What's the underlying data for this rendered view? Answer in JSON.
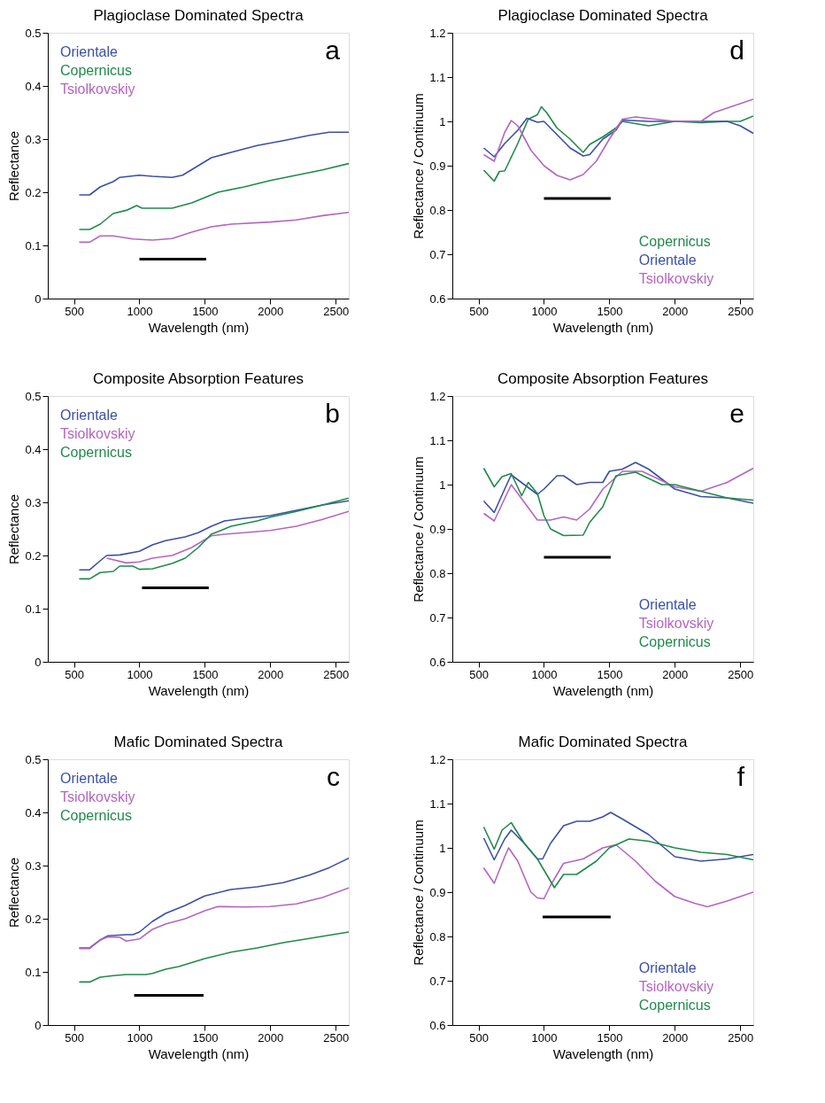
{
  "chart_data": [
    {
      "type": "line",
      "title": "Plagioclase Dominated Spectra",
      "xlabel": "Wavelength (nm)",
      "ylabel": "Reflectance",
      "xlim": [
        300,
        2600
      ],
      "xticks": [
        500,
        1000,
        1500,
        2000,
        2500
      ],
      "ylim": [
        0,
        0.5
      ],
      "yticks": [
        0,
        0.1,
        0.2,
        0.3,
        0.4,
        0.5
      ],
      "grid": false,
      "legend": "top left",
      "annotations": [
        "a"
      ],
      "series": [
        {
          "name": "Orientale",
          "color": "#3a4fa8",
          "x": [
            540,
            620,
            700,
            800,
            850,
            1000,
            1100,
            1250,
            1330,
            1450,
            1550,
            1700,
            1900,
            2100,
            2300,
            2450,
            2600
          ],
          "values": [
            0.195,
            0.195,
            0.21,
            0.22,
            0.228,
            0.232,
            0.23,
            0.228,
            0.232,
            0.25,
            0.265,
            0.275,
            0.288,
            0.297,
            0.307,
            0.313,
            0.313
          ]
        },
        {
          "name": "Copernicus",
          "color": "#1f8a4a",
          "x": [
            540,
            620,
            700,
            800,
            900,
            980,
            1020,
            1250,
            1400,
            1500,
            1600,
            1800,
            2000,
            2200,
            2400,
            2600
          ],
          "values": [
            0.13,
            0.13,
            0.14,
            0.16,
            0.166,
            0.175,
            0.17,
            0.17,
            0.18,
            0.19,
            0.2,
            0.21,
            0.222,
            0.232,
            0.242,
            0.254
          ]
        },
        {
          "name": "Tsiolkovskiy",
          "color": "#b565c0",
          "x": [
            540,
            620,
            700,
            800,
            950,
            1100,
            1250,
            1400,
            1550,
            1700,
            2000,
            2200,
            2400,
            2600
          ],
          "values": [
            0.106,
            0.106,
            0.118,
            0.118,
            0.112,
            0.11,
            0.113,
            0.125,
            0.135,
            0.14,
            0.144,
            0.148,
            0.156,
            0.162
          ]
        },
        {
          "color": "#000000",
          "x": [
            1000,
            1510
          ],
          "values": [
            0.074,
            0.074
          ]
        }
      ]
    },
    {
      "type": "line",
      "title": "Plagioclase Dominated Spectra",
      "xlabel": "Wavelength (nm)",
      "ylabel": "Reflectance / Continuum",
      "xlim": [
        300,
        2600
      ],
      "xticks": [
        500,
        1000,
        1500,
        2000,
        2500
      ],
      "ylim": [
        0.6,
        1.2
      ],
      "yticks": [
        0.6,
        0.7,
        0.8,
        0.9,
        1,
        1.1,
        1.2
      ],
      "grid": false,
      "legend": "bottom right",
      "annotations": [
        "d"
      ],
      "series": [
        {
          "name": "Copernicus",
          "color": "#1f8a4a",
          "x": [
            540,
            620,
            660,
            700,
            800,
            880,
            950,
            980,
            1020,
            1100,
            1200,
            1300,
            1350,
            1450,
            1550,
            1600,
            1800,
            2000,
            2200,
            2400,
            2500,
            2600
          ],
          "values": [
            0.89,
            0.865,
            0.887,
            0.888,
            0.95,
            1.005,
            1.015,
            1.033,
            1.02,
            0.985,
            0.96,
            0.93,
            0.948,
            0.965,
            0.985,
            1.0,
            0.99,
            1.0,
            0.997,
            1.0,
            1.0,
            1.012
          ]
        },
        {
          "name": "Orientale",
          "color": "#3a4fa8",
          "x": [
            540,
            620,
            700,
            800,
            870,
            950,
            1000,
            1100,
            1200,
            1300,
            1350,
            1450,
            1550,
            1600,
            1800,
            2000,
            2200,
            2400,
            2500,
            2600
          ],
          "values": [
            0.94,
            0.92,
            0.95,
            0.98,
            1.007,
            0.998,
            1.0,
            0.97,
            0.94,
            0.922,
            0.925,
            0.96,
            0.98,
            1.003,
            1.0,
            1.0,
            1.0,
            1.0,
            0.99,
            0.973
          ]
        },
        {
          "name": "Tsiolkovskiy",
          "color": "#b565c0",
          "x": [
            540,
            620,
            700,
            750,
            800,
            900,
            1000,
            1100,
            1200,
            1300,
            1400,
            1500,
            1600,
            1700,
            2000,
            2200,
            2300,
            2500,
            2600
          ],
          "values": [
            0.925,
            0.91,
            0.975,
            1.002,
            0.99,
            0.935,
            0.9,
            0.878,
            0.868,
            0.88,
            0.91,
            0.96,
            1.005,
            1.01,
            1.0,
            1.0,
            1.02,
            1.04,
            1.05
          ]
        },
        {
          "color": "#000000",
          "x": [
            1000,
            1510
          ],
          "values": [
            0.826,
            0.826
          ]
        }
      ]
    },
    {
      "type": "line",
      "title": "Composite Absorption Features",
      "xlabel": "Wavelength (nm)",
      "ylabel": "Reflectance",
      "xlim": [
        300,
        2600
      ],
      "xticks": [
        500,
        1000,
        1500,
        2000,
        2500
      ],
      "ylim": [
        0,
        0.5
      ],
      "yticks": [
        0,
        0.1,
        0.2,
        0.3,
        0.4,
        0.5
      ],
      "grid": false,
      "legend": "top left",
      "annotations": [
        "b"
      ],
      "series": [
        {
          "name": "Orientale",
          "color": "#3a4fa8",
          "x": [
            540,
            620,
            700,
            750,
            850,
            1000,
            1100,
            1200,
            1350,
            1450,
            1550,
            1650,
            1800,
            2000,
            2200,
            2400,
            2600
          ],
          "values": [
            0.173,
            0.173,
            0.19,
            0.2,
            0.201,
            0.208,
            0.22,
            0.228,
            0.235,
            0.243,
            0.255,
            0.265,
            0.27,
            0.275,
            0.285,
            0.295,
            0.303
          ]
        },
        {
          "name": "Tsiolkovskiy",
          "color": "#b565c0",
          "x": [
            750,
            900,
            1000,
            1100,
            1250,
            1400,
            1550,
            1650,
            1800,
            2000,
            2200,
            2400,
            2600
          ],
          "values": [
            0.195,
            0.186,
            0.188,
            0.195,
            0.2,
            0.215,
            0.237,
            0.24,
            0.243,
            0.247,
            0.255,
            0.268,
            0.283
          ]
        },
        {
          "name": "Copernicus",
          "color": "#1f8a4a",
          "x": [
            540,
            620,
            700,
            800,
            850,
            950,
            1000,
            1100,
            1250,
            1350,
            1450,
            1550,
            1700,
            1900,
            2000,
            2200,
            2400,
            2600
          ],
          "values": [
            0.156,
            0.156,
            0.168,
            0.17,
            0.18,
            0.18,
            0.174,
            0.175,
            0.185,
            0.195,
            0.215,
            0.24,
            0.255,
            0.265,
            0.272,
            0.283,
            0.295,
            0.308
          ]
        },
        {
          "color": "#000000",
          "x": [
            1020,
            1530
          ],
          "values": [
            0.139,
            0.139
          ]
        }
      ]
    },
    {
      "type": "line",
      "title": "Composite Absorption Features",
      "xlabel": "Wavelength (nm)",
      "ylabel": "Reflectance / Continuum",
      "xlim": [
        300,
        2600
      ],
      "xticks": [
        500,
        1000,
        1500,
        2000,
        2500
      ],
      "ylim": [
        0.6,
        1.2
      ],
      "yticks": [
        0.6,
        0.7,
        0.8,
        0.9,
        1,
        1.1,
        1.2
      ],
      "grid": false,
      "legend": "bottom right",
      "annotations": [
        "e"
      ],
      "series": [
        {
          "name": "Orientale",
          "color": "#3a4fa8",
          "x": [
            540,
            620,
            700,
            750,
            850,
            950,
            1000,
            1100,
            1150,
            1250,
            1350,
            1450,
            1500,
            1600,
            1700,
            1800,
            2000,
            2200,
            2400,
            2600
          ],
          "values": [
            0.963,
            0.937,
            0.99,
            1.022,
            1.0,
            0.978,
            0.99,
            1.02,
            1.02,
            1.0,
            1.005,
            1.005,
            1.03,
            1.035,
            1.05,
            1.035,
            0.99,
            0.973,
            0.97,
            0.958
          ]
        },
        {
          "name": "Tsiolkovskiy",
          "color": "#b565c0",
          "x": [
            540,
            620,
            750,
            850,
            950,
            1050,
            1150,
            1250,
            1350,
            1450,
            1600,
            1750,
            2000,
            2200,
            2400,
            2600
          ],
          "values": [
            0.935,
            0.918,
            1.0,
            0.96,
            0.92,
            0.92,
            0.927,
            0.92,
            0.945,
            0.99,
            1.03,
            1.03,
            0.995,
            0.985,
            1.005,
            1.037
          ]
        },
        {
          "name": "Copernicus",
          "color": "#1f8a4a",
          "x": [
            540,
            620,
            680,
            750,
            830,
            880,
            950,
            1000,
            1050,
            1150,
            1300,
            1350,
            1450,
            1550,
            1700,
            1900,
            2000,
            2200,
            2400,
            2600
          ],
          "values": [
            1.037,
            0.995,
            1.018,
            1.025,
            0.975,
            1.005,
            0.98,
            0.93,
            0.9,
            0.885,
            0.886,
            0.915,
            0.95,
            1.02,
            1.028,
            1.0,
            1.0,
            0.985,
            0.97,
            0.965
          ]
        },
        {
          "color": "#000000",
          "x": [
            1000,
            1510
          ],
          "values": [
            0.836,
            0.836
          ]
        }
      ]
    },
    {
      "type": "line",
      "title": "Mafic Dominated Spectra",
      "xlabel": "Wavelength (nm)",
      "ylabel": "Reflectance",
      "xlim": [
        300,
        2600
      ],
      "xticks": [
        500,
        1000,
        1500,
        2000,
        2500
      ],
      "ylim": [
        0,
        0.5
      ],
      "yticks": [
        0,
        0.1,
        0.2,
        0.3,
        0.4,
        0.5
      ],
      "grid": false,
      "legend": "top left",
      "annotations": [
        "c"
      ],
      "series": [
        {
          "name": "Orientale",
          "color": "#3a4fa8",
          "x": [
            540,
            620,
            700,
            760,
            900,
            950,
            1000,
            1100,
            1200,
            1350,
            1450,
            1500,
            1700,
            1900,
            2100,
            2300,
            2450,
            2600
          ],
          "values": [
            0.145,
            0.145,
            0.16,
            0.168,
            0.17,
            0.17,
            0.175,
            0.195,
            0.21,
            0.225,
            0.237,
            0.243,
            0.255,
            0.26,
            0.268,
            0.282,
            0.296,
            0.314
          ]
        },
        {
          "name": "Tsiolkovskiy",
          "color": "#b565c0",
          "x": [
            540,
            620,
            700,
            760,
            850,
            900,
            1000,
            1100,
            1200,
            1350,
            1500,
            1600,
            1800,
            2000,
            2200,
            2400,
            2600
          ],
          "values": [
            0.144,
            0.144,
            0.16,
            0.166,
            0.165,
            0.158,
            0.162,
            0.18,
            0.19,
            0.2,
            0.215,
            0.223,
            0.222,
            0.223,
            0.228,
            0.24,
            0.258
          ]
        },
        {
          "name": "Copernicus",
          "color": "#1f8a4a",
          "x": [
            540,
            620,
            700,
            800,
            900,
            1050,
            1100,
            1200,
            1300,
            1500,
            1700,
            1900,
            2100,
            2300,
            2600
          ],
          "values": [
            0.081,
            0.081,
            0.09,
            0.093,
            0.095,
            0.095,
            0.097,
            0.105,
            0.11,
            0.125,
            0.137,
            0.145,
            0.155,
            0.163,
            0.175
          ]
        },
        {
          "color": "#000000",
          "x": [
            960,
            1490
          ],
          "values": [
            0.056,
            0.056
          ]
        }
      ]
    },
    {
      "type": "line",
      "title": "Mafic Dominated Spectra",
      "xlabel": "Wavelength (nm)",
      "ylabel": "Reflectance / Continuum",
      "xlim": [
        300,
        2600
      ],
      "xticks": [
        500,
        1000,
        1500,
        2000,
        2500
      ],
      "ylim": [
        0.6,
        1.2
      ],
      "yticks": [
        0.6,
        0.7,
        0.8,
        0.9,
        1,
        1.1,
        1.2
      ],
      "grid": false,
      "legend": "bottom right",
      "annotations": [
        "f"
      ],
      "series": [
        {
          "name": "Orientale",
          "color": "#3a4fa8",
          "x": [
            540,
            620,
            700,
            750,
            850,
            950,
            990,
            1050,
            1150,
            1250,
            1350,
            1450,
            1510,
            1600,
            1800,
            2000,
            2200,
            2400,
            2600
          ],
          "values": [
            1.022,
            0.973,
            1.02,
            1.04,
            1.01,
            0.975,
            0.975,
            1.01,
            1.05,
            1.06,
            1.06,
            1.07,
            1.08,
            1.065,
            1.03,
            0.98,
            0.97,
            0.975,
            0.985
          ]
        },
        {
          "name": "Tsiolkovskiy",
          "color": "#b565c0",
          "x": [
            540,
            620,
            700,
            730,
            800,
            900,
            950,
            1000,
            1050,
            1150,
            1300,
            1450,
            1550,
            1700,
            1850,
            2000,
            2150,
            2250,
            2400,
            2600
          ],
          "values": [
            0.955,
            0.92,
            0.98,
            1.0,
            0.97,
            0.9,
            0.887,
            0.885,
            0.915,
            0.965,
            0.975,
            1.0,
            1.007,
            0.97,
            0.925,
            0.89,
            0.875,
            0.867,
            0.88,
            0.9
          ]
        },
        {
          "name": "Copernicus",
          "color": "#1f8a4a",
          "x": [
            540,
            620,
            680,
            750,
            850,
            950,
            1000,
            1080,
            1150,
            1250,
            1400,
            1500,
            1650,
            1800,
            2000,
            2200,
            2400,
            2600
          ],
          "values": [
            1.047,
            0.997,
            1.04,
            1.057,
            1.01,
            0.975,
            0.95,
            0.91,
            0.94,
            0.94,
            0.97,
            1.0,
            1.02,
            1.015,
            1.0,
            0.99,
            0.985,
            0.973
          ]
        },
        {
          "color": "#000000",
          "x": [
            990,
            1510
          ],
          "values": [
            0.844,
            0.844
          ]
        }
      ]
    }
  ]
}
